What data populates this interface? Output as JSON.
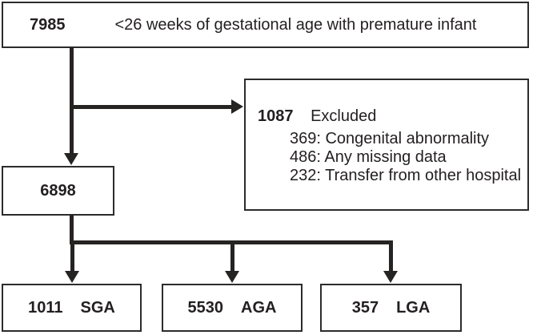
{
  "flowchart": {
    "top_box": {
      "count": "7985",
      "label": "<26 weeks of gestational age with premature infant"
    },
    "excluded_box": {
      "count": "1087",
      "label": "Excluded",
      "items": [
        "369: Congenital abnormality",
        "486: Any missing data",
        "232: Transfer from other hospital"
      ]
    },
    "cohort_box": {
      "count": "6898"
    },
    "outcome_boxes": [
      {
        "count": "1011",
        "label": "SGA"
      },
      {
        "count": "5530",
        "label": "AGA"
      },
      {
        "count": "357",
        "label": "LGA"
      }
    ],
    "colors": {
      "line": "#262323",
      "border": "#2d2b2b",
      "text": "#231f20",
      "background": "#ffffff"
    }
  }
}
